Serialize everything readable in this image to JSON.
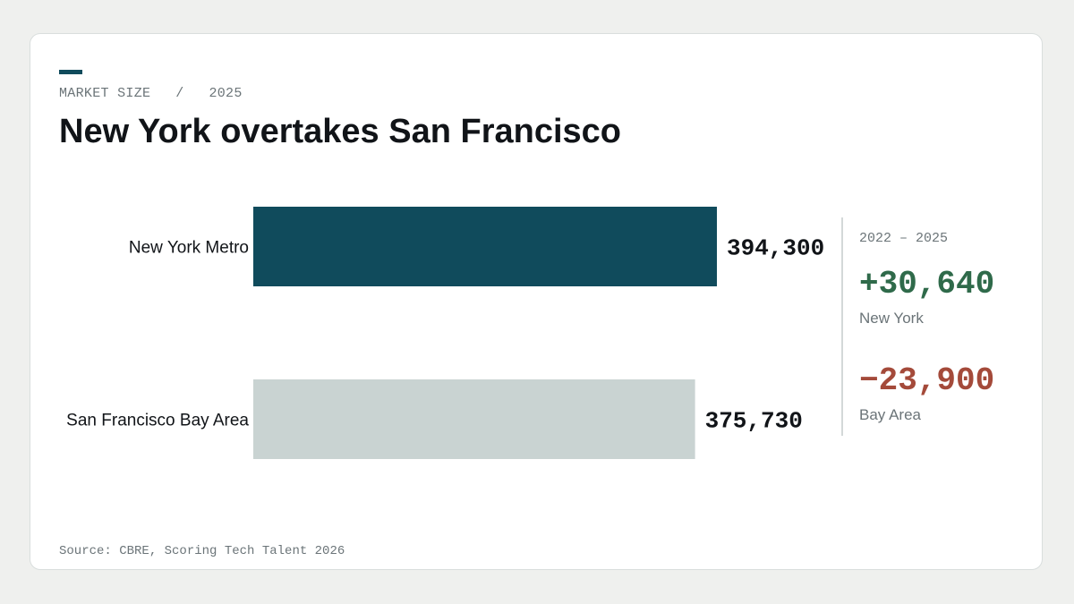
{
  "header": {
    "eyebrow_left": "MARKET SIZE",
    "eyebrow_sep": "/",
    "eyebrow_right": "2025",
    "title": "New York overtakes San Francisco"
  },
  "colors": {
    "accent": "#104b5c",
    "bar_primary": "#104b5c",
    "bar_secondary": "#c9d3d2",
    "positive": "#2f6a4a",
    "negative": "#a44a3a"
  },
  "chart_data": {
    "type": "bar",
    "orientation": "horizontal",
    "categories": [
      "New York Metro",
      "San Francisco Bay Area"
    ],
    "values": [
      394300,
      375730
    ],
    "value_labels": [
      "394,300",
      "375,730"
    ],
    "xlim": [
      0,
      394300
    ],
    "grid": false,
    "legend": "none"
  },
  "side_panel": {
    "period": "2022 – 2025",
    "stats": [
      {
        "delta": "+30,640",
        "label": "New York",
        "tone": "positive"
      },
      {
        "delta": "−23,900",
        "label": "Bay Area",
        "tone": "negative"
      }
    ]
  },
  "footer": {
    "source": "Source: CBRE, Scoring Tech Talent 2026"
  }
}
